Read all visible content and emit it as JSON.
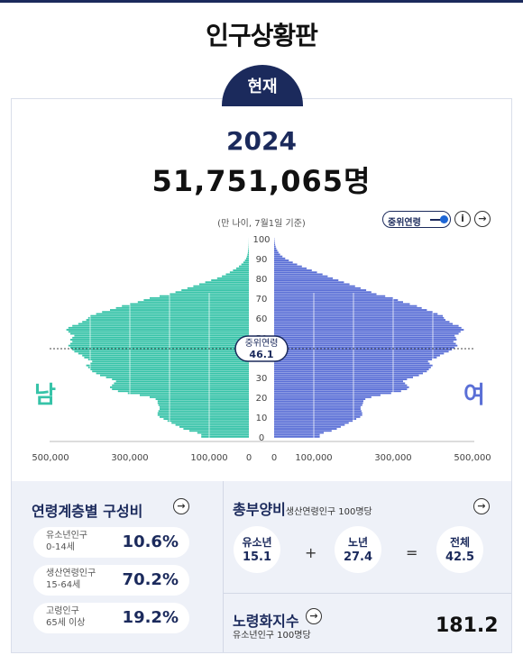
{
  "page": {
    "title": "인구상황판"
  },
  "tab": {
    "label": "현재"
  },
  "summary": {
    "year": "2024",
    "population": "51,751,065명"
  },
  "pyramid": {
    "basis": "(만 나이, 7월1일 기준)",
    "toggle_label": "중위연령",
    "median_label": "중위연령",
    "median_age": "46.1",
    "male_label": "남",
    "female_label": "여",
    "age_ticks": [
      "100",
      "90",
      "80",
      "70",
      "60",
      "50",
      "40",
      "30",
      "20",
      "10",
      "0"
    ],
    "x_ticks_left": [
      "500,000",
      "300,000",
      "100,000",
      "0"
    ],
    "x_ticks_right": [
      "0",
      "100,000",
      "300,000",
      "500,000"
    ],
    "colors": {
      "male": "#36c3a8",
      "female": "#5a6fd6"
    }
  },
  "chart_data": {
    "type": "bar",
    "orientation": "horizontal-pyramid",
    "x_label": "",
    "y_label": "",
    "xlim": [
      0,
      500000
    ],
    "age_range": [
      0,
      100
    ],
    "series": [
      {
        "name": "남",
        "values": [
          120000,
          120000,
          130000,
          150000,
          165000,
          175000,
          185000,
          195000,
          205000,
          215000,
          225000,
          230000,
          230000,
          228000,
          225000,
          225000,
          228000,
          230000,
          230000,
          235000,
          250000,
          275000,
          305000,
          330000,
          345000,
          350000,
          345000,
          340000,
          335000,
          345000,
          360000,
          375000,
          385000,
          395000,
          400000,
          405000,
          410000,
          400000,
          395000,
          405000,
          415000,
          420000,
          430000,
          440000,
          445000,
          450000,
          455000,
          450000,
          445000,
          450000,
          445000,
          440000,
          450000,
          455000,
          460000,
          455000,
          445000,
          430000,
          420000,
          410000,
          405000,
          400000,
          385000,
          370000,
          350000,
          335000,
          320000,
          300000,
          280000,
          265000,
          250000,
          225000,
          200000,
          185000,
          170000,
          155000,
          140000,
          125000,
          110000,
          95000,
          80000,
          68000,
          58000,
          48000,
          40000,
          32000,
          25000,
          19000,
          14000,
          10000,
          7000,
          5000,
          3500,
          2500,
          1800,
          1200,
          800,
          500,
          300,
          200,
          100
        ]
      },
      {
        "name": "여",
        "values": [
          115000,
          115000,
          125000,
          145000,
          158000,
          168000,
          178000,
          188000,
          198000,
          207000,
          217000,
          222000,
          222000,
          220000,
          218000,
          218000,
          222000,
          224000,
          225000,
          230000,
          245000,
          268000,
          295000,
          320000,
          335000,
          340000,
          335000,
          330000,
          325000,
          335000,
          350000,
          365000,
          375000,
          385000,
          390000,
          395000,
          400000,
          392000,
          388000,
          398000,
          410000,
          418000,
          428000,
          440000,
          448000,
          455000,
          462000,
          458000,
          452000,
          460000,
          458000,
          455000,
          465000,
          470000,
          478000,
          472000,
          465000,
          450000,
          442000,
          432000,
          428000,
          425000,
          412000,
          400000,
          385000,
          372000,
          360000,
          342000,
          325000,
          312000,
          300000,
          280000,
          258000,
          245000,
          232000,
          218000,
          204000,
          190000,
          176000,
          162000,
          148000,
          135000,
          122000,
          108000,
          95000,
          82000,
          70000,
          58000,
          47000,
          37000,
          28000,
          21000,
          15000,
          11000,
          8000,
          5500,
          3800,
          2500,
          1600,
          1000,
          600
        ]
      }
    ]
  },
  "age_structure": {
    "title": "연령계층별 구성비",
    "rows": [
      {
        "label1": "유소년인구",
        "label2": "0-14세",
        "value": "10.6%"
      },
      {
        "label1": "생산연령인구",
        "label2": "15-64세",
        "value": "70.2%"
      },
      {
        "label1": "고령인구",
        "label2": "65세 이상",
        "value": "19.2%"
      }
    ]
  },
  "dependency": {
    "title": "총부양비",
    "subtitle": "생산연령인구 100명당",
    "youth_label": "유소년",
    "youth_value": "15.1",
    "old_label": "노년",
    "old_value": "27.4",
    "total_label": "전체",
    "total_value": "42.5",
    "plus": "+",
    "equals": "="
  },
  "aging": {
    "title": "노령화지수",
    "subtitle": "유소년인구 100명당",
    "value": "181.2"
  },
  "icons": {
    "arrow": "→",
    "info": "i"
  }
}
